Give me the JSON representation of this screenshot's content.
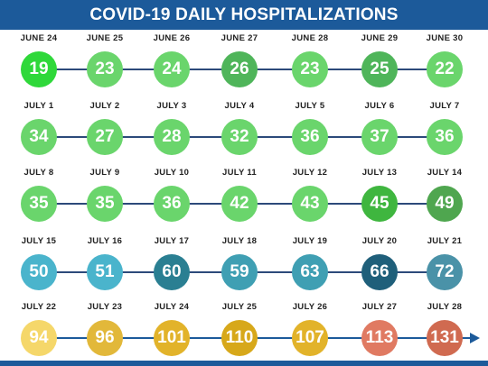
{
  "title": "COVID-19 DAILY HOSPITALIZATIONS",
  "colors": {
    "header": "#1c5a9a",
    "line": "#2c4a7a"
  },
  "chart_data": {
    "type": "table",
    "title": "COVID-19 DAILY HOSPITALIZATIONS",
    "weeks": [
      [
        {
          "date": "JUNE 24",
          "value": 19,
          "color": "#2fd83a"
        },
        {
          "date": "JUNE 25",
          "value": 23,
          "color": "#6ad56c"
        },
        {
          "date": "JUNE 26",
          "value": 24,
          "color": "#6ad56c"
        },
        {
          "date": "JUNE 27",
          "value": 26,
          "color": "#4fb55a"
        },
        {
          "date": "JUNE 28",
          "value": 23,
          "color": "#6ad56c"
        },
        {
          "date": "JUNE 29",
          "value": 25,
          "color": "#4fb55a"
        },
        {
          "date": "JUNE 30",
          "value": 22,
          "color": "#6ad56c"
        }
      ],
      [
        {
          "date": "JULY 1",
          "value": 34,
          "color": "#6ad56c"
        },
        {
          "date": "JULY 2",
          "value": 27,
          "color": "#6ad56c"
        },
        {
          "date": "JULY 3",
          "value": 28,
          "color": "#6ad56c"
        },
        {
          "date": "JULY 4",
          "value": 32,
          "color": "#6ad56c"
        },
        {
          "date": "JULY 5",
          "value": 36,
          "color": "#6ad56c"
        },
        {
          "date": "JULY 6",
          "value": 37,
          "color": "#6ad56c"
        },
        {
          "date": "JULY 7",
          "value": 36,
          "color": "#6ad56c"
        }
      ],
      [
        {
          "date": "JULY 8",
          "value": 35,
          "color": "#6ad56c"
        },
        {
          "date": "JULY 9",
          "value": 35,
          "color": "#6ad56c"
        },
        {
          "date": "JULY 10",
          "value": 36,
          "color": "#6ad56c"
        },
        {
          "date": "JULY 11",
          "value": 42,
          "color": "#6ad56c"
        },
        {
          "date": "JULY 12",
          "value": 43,
          "color": "#6ad56c"
        },
        {
          "date": "JULY 13",
          "value": 45,
          "color": "#3fb63f"
        },
        {
          "date": "JULY 14",
          "value": 49,
          "color": "#4fa64f"
        }
      ],
      [
        {
          "date": "JULY 15",
          "value": 50,
          "color": "#4ab4cc"
        },
        {
          "date": "JULY 16",
          "value": 51,
          "color": "#4ab4cc"
        },
        {
          "date": "JULY 17",
          "value": 60,
          "color": "#2a7f92"
        },
        {
          "date": "JULY 18",
          "value": 59,
          "color": "#3f9fb3"
        },
        {
          "date": "JULY 19",
          "value": 63,
          "color": "#3f9fb3"
        },
        {
          "date": "JULY 20",
          "value": 66,
          "color": "#1f5f7a"
        },
        {
          "date": "JULY 21",
          "value": 72,
          "color": "#4a92a8"
        }
      ],
      [
        {
          "date": "JULY 22",
          "value": 94,
          "color": "#f5d76a"
        },
        {
          "date": "JULY 23",
          "value": 96,
          "color": "#e2b83a"
        },
        {
          "date": "JULY 24",
          "value": 101,
          "color": "#e2b32a"
        },
        {
          "date": "JULY 25",
          "value": 110,
          "color": "#d7a81a"
        },
        {
          "date": "JULY 26",
          "value": 107,
          "color": "#e2b32a"
        },
        {
          "date": "JULY 27",
          "value": 113,
          "color": "#e07a62"
        },
        {
          "date": "JULY 28",
          "value": 131,
          "color": "#d06a50"
        }
      ]
    ]
  }
}
